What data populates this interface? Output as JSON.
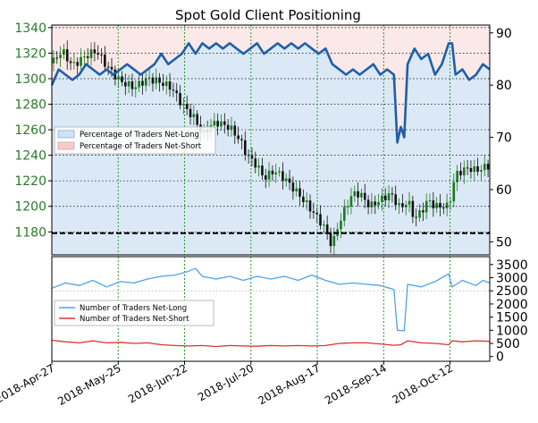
{
  "chart_data": [
    {
      "type": "candlestick",
      "title": "Spot Gold Client Positioning",
      "y_left_ticks": [
        "1180",
        "1200",
        "1220",
        "1240",
        "1260",
        "1280",
        "1300",
        "1320",
        "1340"
      ],
      "y_left_lim": [
        1162,
        1342
      ],
      "y_right_ticks": [
        "50",
        "60",
        "70",
        "80",
        "90"
      ],
      "y_right_lim": [
        47.5,
        91.5
      ],
      "reference_line": 1179,
      "price_path": [
        [
          0,
          1312
        ],
        [
          3,
          1322
        ],
        [
          6,
          1310
        ],
        [
          10,
          1318
        ],
        [
          13,
          1322
        ],
        [
          16,
          1310
        ],
        [
          20,
          1298
        ],
        [
          24,
          1293
        ],
        [
          28,
          1300
        ],
        [
          31,
          1298
        ],
        [
          35,
          1293
        ],
        [
          38,
          1280
        ],
        [
          42,
          1268
        ],
        [
          44,
          1256
        ],
        [
          46,
          1262
        ],
        [
          48,
          1266
        ],
        [
          52,
          1262
        ],
        [
          55,
          1252
        ],
        [
          57,
          1240
        ],
        [
          60,
          1232
        ],
        [
          62,
          1222
        ],
        [
          65,
          1228
        ],
        [
          68,
          1222
        ],
        [
          72,
          1210
        ],
        [
          75,
          1200
        ],
        [
          78,
          1190
        ],
        [
          80,
          1182
        ],
        [
          82,
          1168
        ],
        [
          83,
          1180
        ],
        [
          86,
          1200
        ],
        [
          88,
          1210
        ],
        [
          90,
          1210
        ],
        [
          93,
          1200
        ],
        [
          96,
          1205
        ],
        [
          99,
          1210
        ],
        [
          102,
          1198
        ],
        [
          104,
          1205
        ],
        [
          106,
          1190
        ],
        [
          108,
          1196
        ],
        [
          110,
          1205
        ],
        [
          112,
          1200
        ],
        [
          114,
          1200
        ],
        [
          116,
          1200
        ],
        [
          118,
          1225
        ],
        [
          120,
          1228
        ],
        [
          122,
          1230
        ],
        [
          124,
          1228
        ],
        [
          126,
          1230
        ],
        [
          128,
          1232
        ]
      ],
      "series": [
        {
          "name": "Percentage of Traders Net-Long",
          "color": "#1f5fa8",
          "values": [
            [
              0,
              80
            ],
            [
              2,
              83
            ],
            [
              4,
              82
            ],
            [
              6,
              81
            ],
            [
              8,
              82
            ],
            [
              10,
              84
            ],
            [
              12,
              83
            ],
            [
              14,
              82
            ],
            [
              16,
              83
            ],
            [
              18,
              82
            ],
            [
              20,
              83
            ],
            [
              22,
              84
            ],
            [
              24,
              83
            ],
            [
              26,
              82
            ],
            [
              28,
              83
            ],
            [
              30,
              84
            ],
            [
              32,
              86
            ],
            [
              34,
              84
            ],
            [
              36,
              85
            ],
            [
              38,
              86
            ],
            [
              40,
              88
            ],
            [
              42,
              86
            ],
            [
              44,
              88
            ],
            [
              46,
              87
            ],
            [
              48,
              88
            ],
            [
              50,
              87
            ],
            [
              52,
              88
            ],
            [
              54,
              87
            ],
            [
              56,
              86
            ],
            [
              58,
              87
            ],
            [
              60,
              88
            ],
            [
              62,
              86
            ],
            [
              64,
              87
            ],
            [
              66,
              88
            ],
            [
              68,
              87
            ],
            [
              70,
              88
            ],
            [
              72,
              87
            ],
            [
              74,
              88
            ],
            [
              76,
              87
            ],
            [
              78,
              86
            ],
            [
              80,
              87
            ],
            [
              82,
              84
            ],
            [
              84,
              83
            ],
            [
              86,
              82
            ],
            [
              88,
              83
            ],
            [
              90,
              82
            ],
            [
              92,
              83
            ],
            [
              94,
              84
            ],
            [
              96,
              82
            ],
            [
              98,
              83
            ],
            [
              100,
              82
            ],
            [
              101,
              69
            ],
            [
              102,
              72
            ],
            [
              103,
              70
            ],
            [
              104,
              84
            ],
            [
              106,
              87
            ],
            [
              108,
              85
            ],
            [
              110,
              86
            ],
            [
              112,
              82
            ],
            [
              114,
              84
            ],
            [
              116,
              88
            ],
            [
              117,
              88
            ],
            [
              118,
              82
            ],
            [
              120,
              83
            ],
            [
              122,
              81
            ],
            [
              124,
              82
            ],
            [
              126,
              84
            ],
            [
              128,
              83
            ]
          ]
        }
      ]
    },
    {
      "type": "line",
      "y_ticks": [
        "0",
        "500",
        "1000",
        "1500",
        "2000",
        "2500",
        "3000",
        "3500"
      ],
      "ylim": [
        -180,
        3800
      ],
      "x_ticks": [
        "2018-Apr-27",
        "2018-May-25",
        "2018-Jun-22",
        "2018-Jul-20",
        "2018-Aug-17",
        "2018-Sep-14",
        "2018-Oct-12"
      ],
      "series": [
        {
          "name": "Number of Traders Net-Long",
          "color": "#4da3e8",
          "values": [
            [
              0,
              2600
            ],
            [
              4,
              2800
            ],
            [
              8,
              2700
            ],
            [
              12,
              2900
            ],
            [
              16,
              2650
            ],
            [
              20,
              2850
            ],
            [
              24,
              2800
            ],
            [
              28,
              2950
            ],
            [
              32,
              3050
            ],
            [
              36,
              3100
            ],
            [
              40,
              3250
            ],
            [
              42,
              3350
            ],
            [
              44,
              3050
            ],
            [
              48,
              2950
            ],
            [
              52,
              3050
            ],
            [
              56,
              2900
            ],
            [
              60,
              3050
            ],
            [
              64,
              2950
            ],
            [
              68,
              3050
            ],
            [
              72,
              2900
            ],
            [
              76,
              3100
            ],
            [
              80,
              2900
            ],
            [
              84,
              2750
            ],
            [
              88,
              2800
            ],
            [
              92,
              2750
            ],
            [
              96,
              2700
            ],
            [
              100,
              2550
            ],
            [
              101,
              1000
            ],
            [
              103,
              980
            ],
            [
              104,
              2750
            ],
            [
              108,
              2650
            ],
            [
              112,
              2850
            ],
            [
              116,
              3150
            ],
            [
              117,
              2650
            ],
            [
              120,
              2900
            ],
            [
              124,
              2700
            ],
            [
              126,
              2900
            ],
            [
              128,
              2800
            ]
          ]
        },
        {
          "name": "Number of Traders Net-Short",
          "color": "#e03030",
          "values": [
            [
              0,
              620
            ],
            [
              4,
              560
            ],
            [
              8,
              520
            ],
            [
              12,
              600
            ],
            [
              16,
              520
            ],
            [
              20,
              540
            ],
            [
              24,
              500
            ],
            [
              28,
              520
            ],
            [
              32,
              450
            ],
            [
              36,
              420
            ],
            [
              40,
              400
            ],
            [
              44,
              420
            ],
            [
              48,
              380
            ],
            [
              52,
              420
            ],
            [
              56,
              400
            ],
            [
              60,
              390
            ],
            [
              64,
              420
            ],
            [
              68,
              400
            ],
            [
              72,
              420
            ],
            [
              76,
              400
            ],
            [
              80,
              420
            ],
            [
              84,
              500
            ],
            [
              88,
              520
            ],
            [
              92,
              520
            ],
            [
              96,
              480
            ],
            [
              100,
              430
            ],
            [
              102,
              450
            ],
            [
              104,
              600
            ],
            [
              108,
              520
            ],
            [
              112,
              500
            ],
            [
              116,
              450
            ],
            [
              117,
              600
            ],
            [
              120,
              560
            ],
            [
              124,
              600
            ],
            [
              128,
              580
            ]
          ]
        }
      ]
    }
  ]
}
